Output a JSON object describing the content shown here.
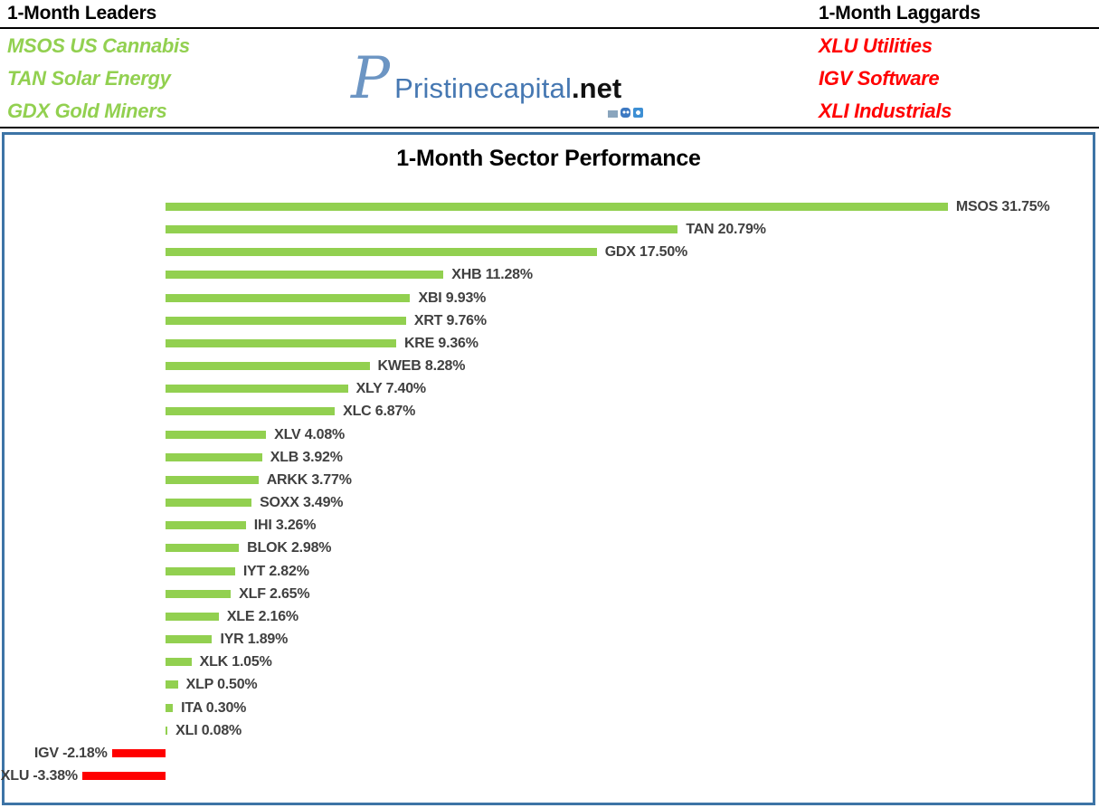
{
  "header": {
    "leaders": {
      "title": "1-Month Leaders",
      "items": [
        "MSOS US Cannabis",
        "TAN Solar Energy",
        "GDX Gold Miners"
      ]
    },
    "laggards": {
      "title": "1-Month Laggards",
      "items": [
        "XLU Utilities",
        "IGV Software",
        "XLI Industrials"
      ]
    },
    "logo": {
      "monogram": "P",
      "name": "Pristinecapital",
      "tld": ".net",
      "social_icons": [
        "chart-icon",
        "discord-icon",
        "twitter-icon"
      ]
    }
  },
  "chart_data": {
    "type": "bar",
    "orientation": "horizontal",
    "title": "1-Month Sector Performance",
    "categories": [
      "MSOS",
      "TAN",
      "GDX",
      "XHB",
      "XBI",
      "XRT",
      "KRE",
      "KWEB",
      "XLY",
      "XLC",
      "XLV",
      "XLB",
      "ARKK",
      "SOXX",
      "IHI",
      "BLOK",
      "IYT",
      "XLF",
      "XLE",
      "IYR",
      "XLK",
      "XLP",
      "ITA",
      "XLI",
      "IGV",
      "XLU"
    ],
    "values": [
      31.75,
      20.79,
      17.5,
      11.28,
      9.93,
      9.76,
      9.36,
      8.28,
      7.4,
      6.87,
      4.08,
      3.92,
      3.77,
      3.49,
      3.26,
      2.98,
      2.82,
      2.65,
      2.16,
      1.89,
      1.05,
      0.5,
      0.3,
      0.08,
      -2.18,
      -3.38
    ],
    "value_label_format": "{category} {value}%",
    "xlim": [
      -5,
      35
    ],
    "grid": false,
    "axes_hidden": true,
    "legend": "none",
    "positive_color": "#92D050",
    "negative_color": "#FF0000",
    "label_color": "#404040"
  },
  "colors": {
    "leaders_text": "#92D050",
    "laggards_text": "#FF0000",
    "logo_blue": "#4678B2",
    "logo_monogram_blue": "#6C95C3",
    "tld_black": "#111111",
    "chart_border": "#3D74A6",
    "header_rule": "#000000"
  }
}
